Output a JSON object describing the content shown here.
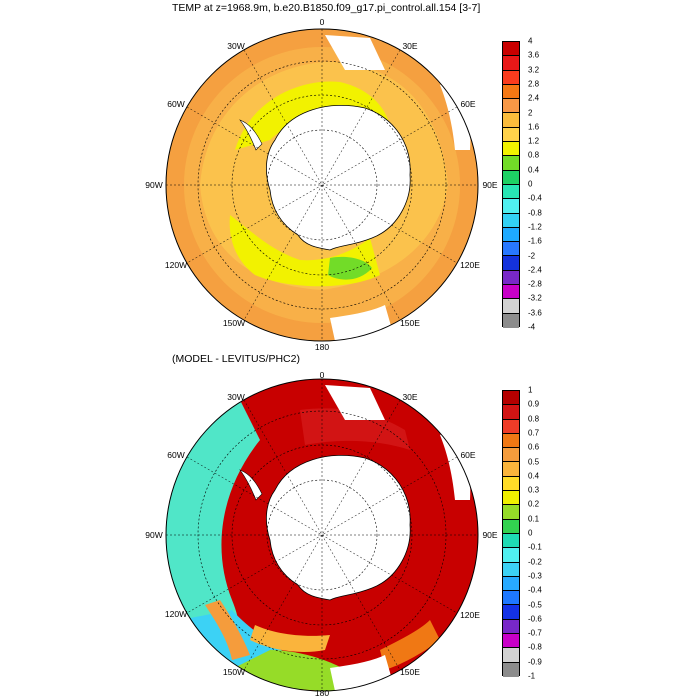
{
  "top": {
    "title": "TEMP at z=1968.9m, b.e20.B1850.f09_g17.pi_control.all.154 [3-7]",
    "lon_labels": [
      "0",
      "30E",
      "60E",
      "90E",
      "120E",
      "150E",
      "180",
      "150W",
      "120W",
      "90W",
      "60W",
      "30W"
    ],
    "colorbar": {
      "labels": [
        "4",
        "3.6",
        "3.2",
        "2.8",
        "2.4",
        "2",
        "1.6",
        "1.2",
        "0.8",
        "0.4",
        "0",
        "-0.4",
        "-0.8",
        "-1.2",
        "-1.6",
        "-2",
        "-2.4",
        "-2.8",
        "-3.2",
        "-3.6",
        "-4"
      ],
      "colors": [
        "#c80000",
        "#e81818",
        "#fa3c1e",
        "#f57814",
        "#f89846",
        "#fbbc3c",
        "#ffd24a",
        "#f2f200",
        "#72dc28",
        "#1ed264",
        "#28e6b4",
        "#50f0f0",
        "#32d2f5",
        "#1eaaff",
        "#2878ff",
        "#1432dc",
        "#7828c8",
        "#c800c8",
        "#d2d2d2",
        "#8c8c8c"
      ]
    }
  },
  "bottom": {
    "title": "(MODEL - LEVITUS/PHC2)",
    "lon_labels": [
      "0",
      "30E",
      "60E",
      "90E",
      "120E",
      "150E",
      "180",
      "150W",
      "120W",
      "90W",
      "60W",
      "30W"
    ],
    "colorbar": {
      "labels": [
        "1",
        "0.9",
        "0.8",
        "0.7",
        "0.6",
        "0.5",
        "0.4",
        "0.3",
        "0.2",
        "0.1",
        "0",
        "-0.1",
        "-0.2",
        "-0.3",
        "-0.4",
        "-0.5",
        "-0.6",
        "-0.7",
        "-0.8",
        "-0.9",
        "-1"
      ],
      "colors": [
        "#b40000",
        "#d21414",
        "#ee3c28",
        "#f07814",
        "#f59c3c",
        "#fab43c",
        "#ffdc28",
        "#f0f000",
        "#96dc28",
        "#32d250",
        "#1edcb4",
        "#50f0f0",
        "#3cd2f5",
        "#28aaff",
        "#1e78ff",
        "#1432e6",
        "#7828c8",
        "#c800c8",
        "#d2d2d2",
        "#8c8c8c"
      ]
    }
  }
}
